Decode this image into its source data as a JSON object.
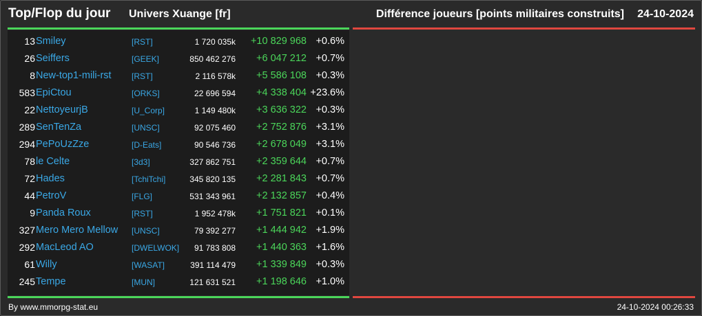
{
  "header": {
    "title": "Top/Flop du jour",
    "universe": "Univers Xuange [fr]",
    "metric": "Différence joueurs [points militaires construits]",
    "date": "24-10-2024"
  },
  "colors": {
    "top_accent": "#4bd65a",
    "flop_accent": "#e0473f",
    "player_link": "#3aa8e6"
  },
  "rows": [
    {
      "rank": "13",
      "name": "Smiley",
      "alliance": "[RST]",
      "points": "1 720 035k",
      "diff": "+10 829 968",
      "pct": "+0.6%"
    },
    {
      "rank": "26",
      "name": "Seiffers",
      "alliance": "[GEEK]",
      "points": "850 462 276",
      "diff": "+6 047 212",
      "pct": "+0.7%"
    },
    {
      "rank": "8",
      "name": "New-top1-mili-rst",
      "alliance": "[RST]",
      "points": "2 116 578k",
      "diff": "+5 586 108",
      "pct": "+0.3%"
    },
    {
      "rank": "583",
      "name": "EpiCtou",
      "alliance": "[ORKS]",
      "points": "22 696 594",
      "diff": "+4 338 404",
      "pct": "+23.6%"
    },
    {
      "rank": "22",
      "name": "NettoyeurjB",
      "alliance": "[U_Corp]",
      "points": "1 149 480k",
      "diff": "+3 636 322",
      "pct": "+0.3%"
    },
    {
      "rank": "289",
      "name": "SenTenZa",
      "alliance": "[UNSC]",
      "points": "92 075 460",
      "diff": "+2 752 876",
      "pct": "+3.1%"
    },
    {
      "rank": "294",
      "name": "PePoUzZze",
      "alliance": "[D-Eats]",
      "points": "90 546 736",
      "diff": "+2 678 049",
      "pct": "+3.1%"
    },
    {
      "rank": "78",
      "name": "le Celte",
      "alliance": "[3d3]",
      "points": "327 862 751",
      "diff": "+2 359 644",
      "pct": "+0.7%"
    },
    {
      "rank": "72",
      "name": "Hades",
      "alliance": "[TchiTchi]",
      "points": "345 820 135",
      "diff": "+2 281 843",
      "pct": "+0.7%"
    },
    {
      "rank": "44",
      "name": "PetroV",
      "alliance": "[FLG]",
      "points": "531 343 961",
      "diff": "+2 132 857",
      "pct": "+0.4%"
    },
    {
      "rank": "9",
      "name": "Panda Roux",
      "alliance": "[RST]",
      "points": "1 952 478k",
      "diff": "+1 751 821",
      "pct": "+0.1%"
    },
    {
      "rank": "327",
      "name": "Mero Mero Mellow",
      "alliance": "[UNSC]",
      "points": "79 392 277",
      "diff": "+1 444 942",
      "pct": "+1.9%"
    },
    {
      "rank": "292",
      "name": "MacLeod AO",
      "alliance": "[DWELWOK]",
      "points": "91 783 808",
      "diff": "+1 440 363",
      "pct": "+1.6%"
    },
    {
      "rank": "61",
      "name": "Willy",
      "alliance": "[WASAT]",
      "points": "391 114 479",
      "diff": "+1 339 849",
      "pct": "+0.3%"
    },
    {
      "rank": "245",
      "name": "Tempe",
      "alliance": "[MUN]",
      "points": "121 631 521",
      "diff": "+1 198 646",
      "pct": "+1.0%"
    }
  ],
  "footer": {
    "credit": "By www.mmorpg-stat.eu",
    "timestamp": "24-10-2024 00:26:33"
  }
}
